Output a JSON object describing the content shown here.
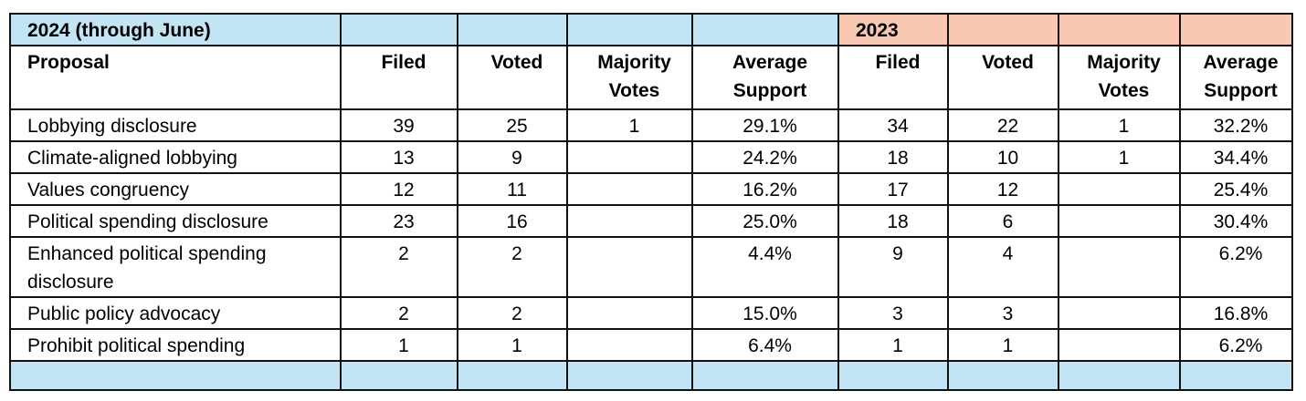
{
  "header": {
    "title": "2024 (through June)",
    "year2": "2023"
  },
  "columns": [
    "Proposal",
    "Filed",
    "Voted",
    "Majority Votes",
    "Average Support",
    "Filed",
    "Voted",
    "Majority Votes",
    "Average Support"
  ],
  "rows": [
    [
      "Lobbying disclosure",
      39,
      25,
      1,
      "29.1%",
      34,
      22,
      1,
      "32.2%"
    ],
    [
      "Climate-aligned lobbying",
      13,
      9,
      null,
      "24.2%",
      18,
      10,
      1,
      "34.4%"
    ],
    [
      "Values congruency",
      12,
      11,
      null,
      "16.2%",
      17,
      12,
      null,
      "25.4%"
    ],
    [
      "Political spending disclosure",
      23,
      16,
      null,
      "25.0%",
      18,
      6,
      null,
      "30.4%"
    ],
    [
      "Enhanced political spending disclosure",
      2,
      2,
      null,
      "4.4%",
      9,
      4,
      null,
      "6.2%"
    ],
    [
      "Public policy advocacy",
      2,
      2,
      null,
      "15.0%",
      3,
      3,
      null,
      "16.8%"
    ],
    [
      "Prohibit political spending",
      1,
      1,
      null,
      "6.4%",
      1,
      1,
      null,
      "6.2%"
    ]
  ]
}
